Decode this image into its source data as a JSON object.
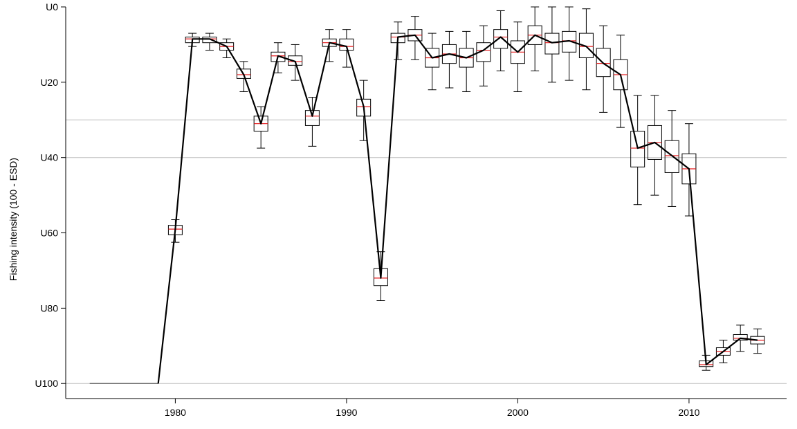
{
  "chart_data": {
    "type": "boxplot",
    "ylabel": "Fishing intensity (100 - ESD)",
    "x_ticks": [
      "1980",
      "1990",
      "2000",
      "2010"
    ],
    "y_ticks": [
      "U0",
      "U20",
      "U40",
      "U60",
      "U80",
      "U100"
    ],
    "y_tick_values": [
      0,
      20,
      40,
      60,
      80,
      100
    ],
    "xlim": [
      1973.6,
      2015.7
    ],
    "ylim": [
      0,
      104
    ],
    "y_reversed": true,
    "hlines": [
      30,
      40,
      100
    ],
    "colors": {
      "median": "#e41a1c",
      "line": "#000000",
      "grid": "#bebebe"
    },
    "flat_segment": {
      "x": [
        1975,
        1979
      ],
      "y": 100
    },
    "years": [
      1980,
      1981,
      1982,
      1983,
      1984,
      1985,
      1986,
      1987,
      1988,
      1989,
      1990,
      1991,
      1992,
      1993,
      1994,
      1995,
      1996,
      1997,
      1998,
      1999,
      2000,
      2001,
      2002,
      2003,
      2004,
      2005,
      2006,
      2007,
      2008,
      2009,
      2010,
      2011,
      2012,
      2013,
      2014
    ],
    "median": [
      59.0,
      8.5,
      8.5,
      10.5,
      18.0,
      31.0,
      13.0,
      14.5,
      29.0,
      9.5,
      10.5,
      26.5,
      72.0,
      8.0,
      7.5,
      13.5,
      12.5,
      13.5,
      11.5,
      8.0,
      12.0,
      7.5,
      9.5,
      9.0,
      10.5,
      15.0,
      18.0,
      37.5,
      36.0,
      39.5,
      43.0,
      95.0,
      91.5,
      88.0,
      88.5
    ],
    "q1": [
      58.0,
      8.0,
      8.0,
      9.5,
      16.5,
      29.0,
      12.0,
      13.0,
      27.5,
      8.5,
      8.5,
      24.5,
      69.5,
      7.0,
      6.0,
      11.0,
      10.0,
      11.0,
      9.5,
      6.0,
      9.0,
      5.0,
      7.0,
      6.5,
      7.0,
      11.0,
      14.0,
      33.0,
      31.5,
      35.5,
      39.0,
      94.0,
      90.5,
      87.0,
      87.5
    ],
    "q3": [
      60.5,
      9.5,
      9.5,
      11.5,
      19.0,
      33.0,
      14.5,
      15.5,
      31.5,
      10.5,
      11.5,
      29.0,
      74.0,
      9.5,
      9.0,
      16.0,
      15.0,
      16.0,
      14.5,
      11.0,
      15.0,
      10.0,
      12.5,
      12.0,
      13.5,
      18.5,
      22.0,
      42.5,
      40.5,
      44.0,
      47.0,
      95.5,
      92.5,
      88.5,
      89.5
    ],
    "whisker_low": [
      56.5,
      7.0,
      7.0,
      8.5,
      14.5,
      26.5,
      9.5,
      10.0,
      24.0,
      6.0,
      6.0,
      19.5,
      65.0,
      4.0,
      2.5,
      7.0,
      6.5,
      6.5,
      5.0,
      1.0,
      4.0,
      0.0,
      0.0,
      0.0,
      0.5,
      5.0,
      7.5,
      23.5,
      23.5,
      27.5,
      31.0,
      92.5,
      88.5,
      84.5,
      85.5
    ],
    "whisker_high": [
      62.5,
      10.5,
      11.5,
      13.5,
      22.5,
      37.5,
      17.5,
      19.5,
      37.0,
      14.5,
      16.0,
      35.5,
      78.0,
      14.0,
      14.0,
      22.0,
      21.5,
      22.5,
      21.0,
      17.0,
      22.5,
      17.0,
      20.0,
      19.5,
      22.0,
      28.0,
      32.0,
      52.5,
      50.0,
      53.0,
      55.5,
      96.5,
      94.5,
      91.5,
      92.0
    ]
  }
}
